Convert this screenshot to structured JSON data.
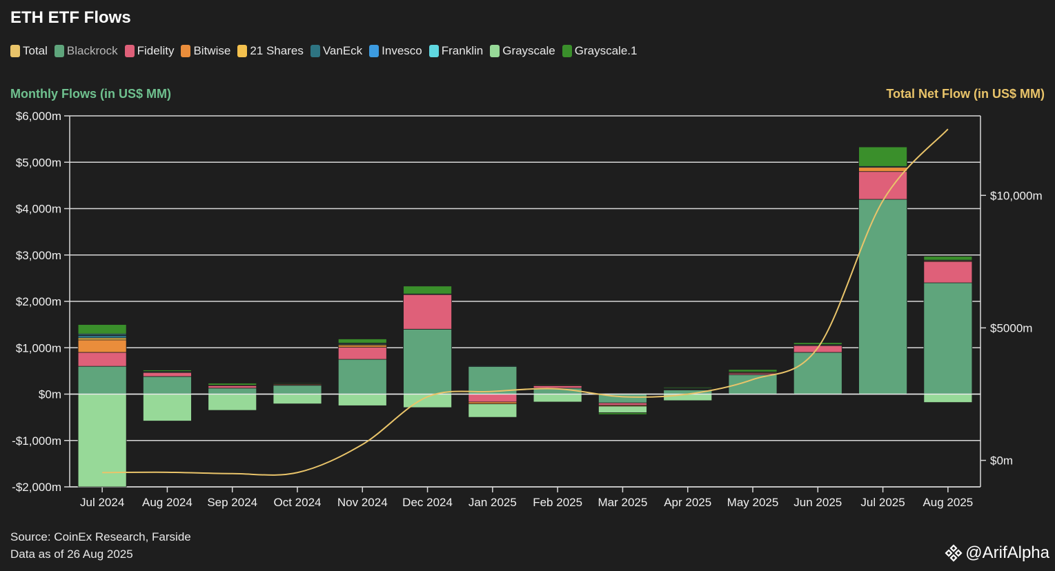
{
  "title": "ETH ETF Flows",
  "left_axis_title": "Monthly Flows (in US$ MM)",
  "right_axis_title": "Total Net Flow (in US$ MM)",
  "source_line": "Source: CoinEx Research, Farside",
  "date_line": "Data as of 26 Aug 2025",
  "brand": "@ArifAlpha",
  "colors": {
    "left_title": "#6fc18f",
    "right_title": "#e9c46a",
    "total": "#e9c46a",
    "blackrock": "#5fa57c",
    "fidelity": "#df6079",
    "bitwise": "#ea8d3b",
    "shares21": "#f4c14e",
    "vaneck": "#2e7482",
    "invesco": "#3c9be0",
    "franklin": "#5fd7e0",
    "grayscale": "#97d998",
    "grayscale1": "#3a8f2b"
  },
  "legend": [
    {
      "key": "total",
      "label": "Total"
    },
    {
      "key": "blackrock",
      "label": "Blackrock"
    },
    {
      "key": "fidelity",
      "label": "Fidelity"
    },
    {
      "key": "bitwise",
      "label": "Bitwise"
    },
    {
      "key": "shares21",
      "label": "21 Shares"
    },
    {
      "key": "vaneck",
      "label": "VanEck"
    },
    {
      "key": "invesco",
      "label": "Invesco"
    },
    {
      "key": "franklin",
      "label": "Franklin"
    },
    {
      "key": "grayscale",
      "label": "Grayscale"
    },
    {
      "key": "grayscale1",
      "label": "Grayscale.1"
    }
  ],
  "chart_data": {
    "type": "bar",
    "stacked": true,
    "categories": [
      "Jul 2024",
      "Aug 2024",
      "Sep 2024",
      "Oct 2024",
      "Nov 2024",
      "Dec 2024",
      "Jan 2025",
      "Feb 2025",
      "Mar 2025",
      "Apr 2025",
      "May 2025",
      "Jun 2025",
      "Jul 2025",
      "Aug 2025"
    ],
    "series": [
      {
        "name": "Blackrock",
        "key": "blackrock",
        "values": [
          600,
          380,
          130,
          190,
          750,
          1400,
          600,
          130,
          -190,
          90,
          420,
          900,
          4200,
          2400
        ]
      },
      {
        "name": "Fidelity",
        "key": "fidelity",
        "values": [
          300,
          90,
          60,
          15,
          260,
          750,
          -170,
          60,
          -50,
          20,
          30,
          150,
          600,
          460
        ]
      },
      {
        "name": "Bitwise",
        "key": "bitwise",
        "values": [
          270,
          10,
          5,
          20,
          40,
          0,
          -40,
          5,
          -20,
          5,
          20,
          10,
          90,
          20
        ]
      },
      {
        "name": "21 Shares",
        "key": "shares21",
        "values": [
          40,
          0,
          0,
          0,
          20,
          0,
          0,
          10,
          0,
          5,
          0,
          0,
          0,
          0
        ]
      },
      {
        "name": "VanEck",
        "key": "vaneck",
        "values": [
          60,
          10,
          0,
          10,
          20,
          10,
          10,
          0,
          0,
          10,
          10,
          10,
          20,
          10
        ]
      },
      {
        "name": "Invesco",
        "key": "invesco",
        "values": [
          10,
          0,
          0,
          0,
          0,
          0,
          0,
          0,
          0,
          0,
          0,
          0,
          0,
          0
        ]
      },
      {
        "name": "Franklin",
        "key": "franklin",
        "values": [
          20,
          0,
          0,
          0,
          10,
          0,
          0,
          0,
          0,
          0,
          0,
          0,
          0,
          0
        ]
      },
      {
        "name": "Grayscale",
        "key": "grayscale",
        "values": [
          -2000,
          -580,
          -350,
          -210,
          -250,
          -290,
          -290,
          -170,
          -140,
          -140,
          0,
          0,
          0,
          -180
        ]
      },
      {
        "name": "Grayscale.1",
        "key": "grayscale1",
        "values": [
          200,
          30,
          40,
          10,
          90,
          170,
          0,
          10,
          -40,
          20,
          50,
          40,
          420,
          80
        ]
      }
    ],
    "total_line": {
      "name": "Total",
      "key": "total",
      "values": [
        -460,
        -450,
        -500,
        -460,
        600,
        2400,
        2600,
        2700,
        2400,
        2500,
        3050,
        4250,
        9800,
        12500
      ]
    },
    "y_left": {
      "min": -2000,
      "max": 6000,
      "ticks": [
        -2000,
        -1000,
        0,
        1000,
        2000,
        3000,
        4000,
        5000,
        6000
      ],
      "tick_labels": [
        "-$2,000m",
        "-$1,000m",
        "$0m",
        "$1,000m",
        "$2,000m",
        "$3,000m",
        "$4,000m",
        "$5,000m",
        "$6,000m"
      ]
    },
    "y_right": {
      "min": -1000,
      "max": 13000,
      "ticks": [
        0,
        5000,
        10000
      ],
      "tick_labels": [
        "$0m",
        "$5000m",
        "$10,000m"
      ]
    },
    "grid": true,
    "legend_position": "top-left"
  }
}
